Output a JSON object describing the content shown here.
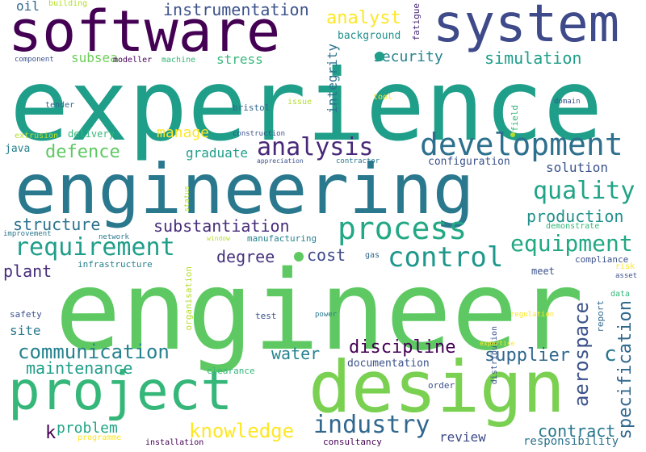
{
  "palette": {
    "dark_purple": "#440154",
    "purple": "#482878",
    "indigo": "#3e4a89",
    "blue": "#31688e",
    "teal_blue": "#26828e",
    "teal": "#1f9e89",
    "green": "#35b779",
    "light_green": "#6ece58",
    "yellow_green": "#b5de2b",
    "yellow": "#fde725"
  },
  "words": {
    "engineer": "engineer",
    "experience": "experience",
    "engineering": "engineering",
    "software": "software",
    "system": "system",
    "design": "design",
    "project": "project",
    "development": "development",
    "analysis": "analysis",
    "process": "process",
    "requirement": "requirement",
    "control": "control",
    "quality": "quality",
    "equipment": "equipment",
    "communication": "communication",
    "industry": "industry",
    "knowledge": "knowledge",
    "discipline": "discipline",
    "substantiation": "substantiation",
    "defence": "defence",
    "production": "production",
    "instrumentation": "instrumentation",
    "security": "security",
    "simulation": "simulation",
    "analyst": "analyst",
    "maintenance": "maintenance",
    "water": "water",
    "supplier": "supplier",
    "contract": "contract",
    "aerospace": "aerospace",
    "specification": "specification",
    "structure": "structure",
    "solution": "solution",
    "degree": "degree",
    "cost": "cost",
    "plant": "plant",
    "manage": "manage",
    "graduate": "graduate",
    "stress": "stress",
    "integrity": "integrity",
    "problem": "problem",
    "review": "review",
    "responsibility": "responsibility",
    "configuration": "configuration",
    "documentation": "documentation",
    "oil": "oil",
    "subsea": "subsea",
    "c": "c",
    "k": "k",
    "site": "site",
    "java": "java",
    "delivery": "delivery",
    "background": "background",
    "building": "building",
    "fatigue": "fatigue",
    "component": "component",
    "modeller": "modeller",
    "machine": "machine",
    "tender": "tender",
    "bristol": "bristol",
    "issue": "issue",
    "tool": "tool",
    "field": "field",
    "domain": "domain",
    "extrusion": "extrusion",
    "construction": "construction",
    "appreciation": "appreciation",
    "contractor": "contractor",
    "status": "status",
    "improvement": "improvement",
    "network": "network",
    "window": "window",
    "manufacturing": "manufacturing",
    "demonstrate": "demonstrate",
    "infrastructure": "infrastructure",
    "gas": "gas",
    "compliance": "compliance",
    "risk": "risk",
    "asset": "asset",
    "meet": "meet",
    "organisation": "organisation",
    "data": "data",
    "safety": "safety",
    "test": "test",
    "power": "power",
    "regulation": "regulation",
    "report": "report",
    "distribution": "distribution",
    "expertise": "expertise",
    "clearance": "clearance",
    "order": "order",
    "programme": "programme",
    "installation": "installation",
    "consultancy": "consultancy"
  }
}
